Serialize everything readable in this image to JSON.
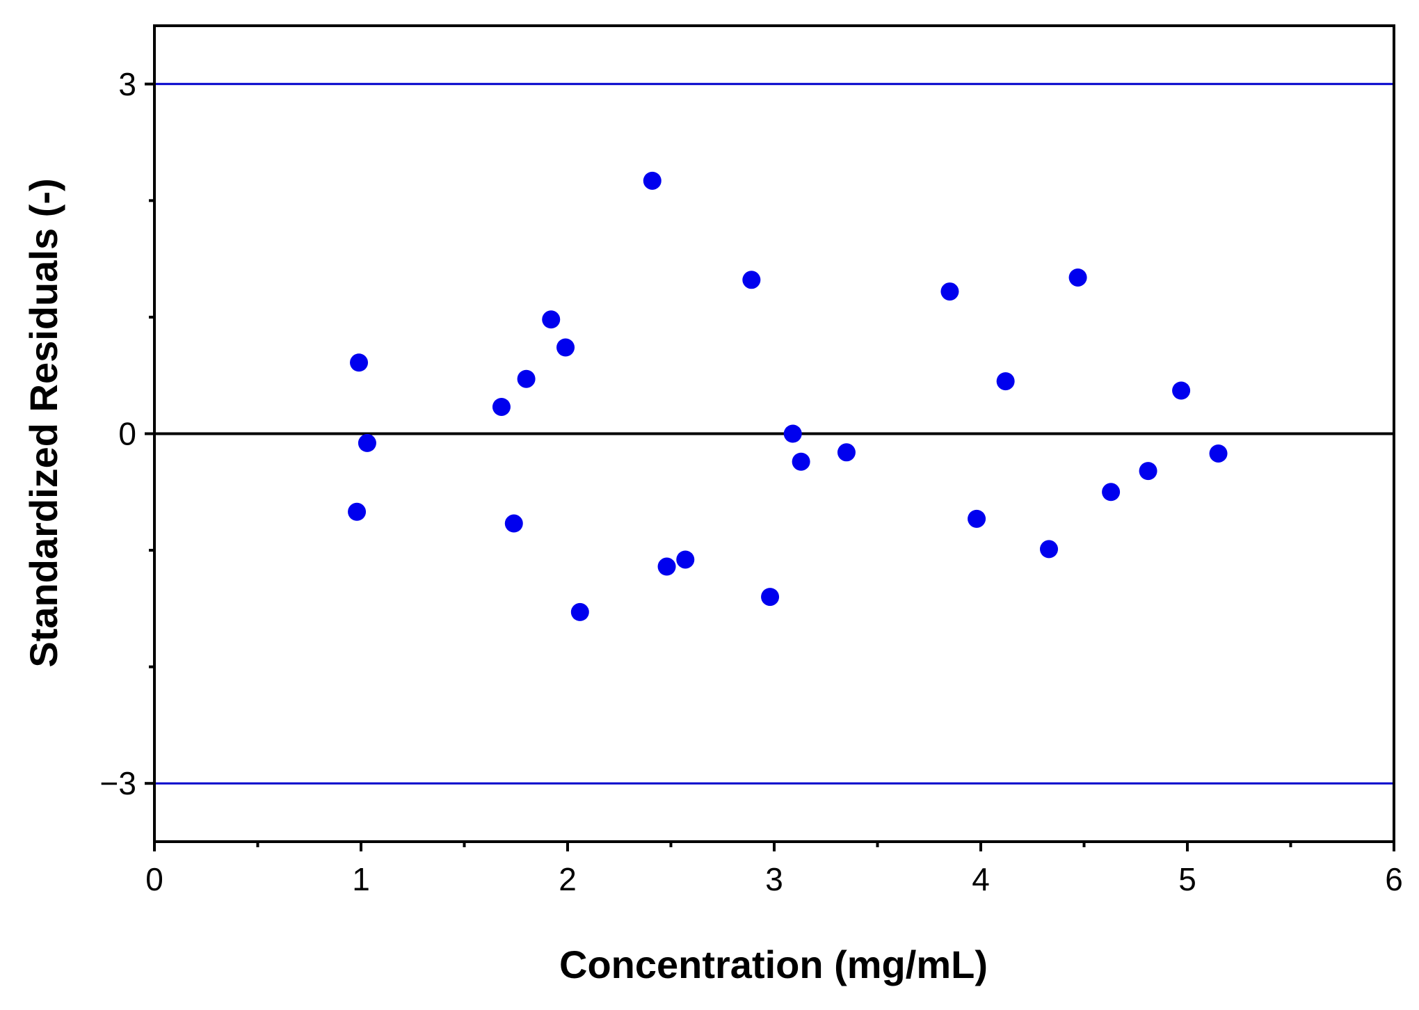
{
  "chart_data": {
    "type": "scatter",
    "title": "",
    "xlabel": "Concentration (mg/mL)",
    "ylabel": "Standardized Residuals (-)",
    "xlim": [
      0,
      6
    ],
    "ylim": [
      -3.5,
      3.5
    ],
    "x_major_ticks": [
      0,
      1,
      2,
      3,
      4,
      5,
      6
    ],
    "x_minor_ticks": [
      0.5,
      1.5,
      2.5,
      3.5,
      4.5,
      5.5
    ],
    "x_tick_labels": [
      "0",
      "1",
      "2",
      "3",
      "4",
      "5",
      "6"
    ],
    "y_major_ticks": [
      -3,
      0,
      3
    ],
    "y_minor_ticks": [
      -2,
      -1,
      1,
      2
    ],
    "y_tick_labels": [
      "−3",
      "0",
      "3"
    ],
    "grid": false,
    "colors": {
      "points": "#0000ee",
      "limit_lines": "#0000cc",
      "zero_line": "#000000",
      "axes": "#000000"
    },
    "reference_lines": [
      {
        "name": "upper-limit",
        "y": 3,
        "color": "#0000cc"
      },
      {
        "name": "zero",
        "y": 0,
        "color": "#000000"
      },
      {
        "name": "lower-limit",
        "y": -3,
        "color": "#0000cc"
      }
    ],
    "series": [
      {
        "name": "residuals",
        "points": [
          [
            0.98,
            -0.67
          ],
          [
            0.99,
            0.61
          ],
          [
            1.03,
            -0.08
          ],
          [
            1.68,
            0.23
          ],
          [
            1.74,
            -0.77
          ],
          [
            1.8,
            0.47
          ],
          [
            1.92,
            0.98
          ],
          [
            1.99,
            0.74
          ],
          [
            2.06,
            -1.53
          ],
          [
            2.41,
            2.17
          ],
          [
            2.48,
            -1.14
          ],
          [
            2.57,
            -1.08
          ],
          [
            2.89,
            1.32
          ],
          [
            2.98,
            -1.4
          ],
          [
            3.09,
            0.0
          ],
          [
            3.13,
            -0.24
          ],
          [
            3.35,
            -0.16
          ],
          [
            3.85,
            1.22
          ],
          [
            3.98,
            -0.73
          ],
          [
            4.12,
            0.45
          ],
          [
            4.33,
            -0.99
          ],
          [
            4.47,
            1.34
          ],
          [
            4.63,
            -0.5
          ],
          [
            4.81,
            -0.32
          ],
          [
            4.97,
            0.37
          ],
          [
            5.15,
            -0.17
          ]
        ]
      }
    ]
  }
}
